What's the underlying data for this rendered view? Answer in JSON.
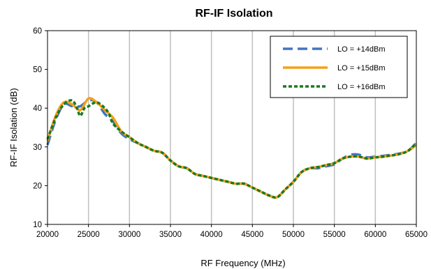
{
  "chart_data": {
    "type": "line",
    "title": "RF-IF Isolation",
    "xlabel": "RF Frequency (MHz)",
    "ylabel": "RF-IF Isolation (dB)",
    "xlim": [
      20000,
      65000
    ],
    "ylim": [
      10,
      60
    ],
    "x_ticks": [
      20000,
      25000,
      30000,
      35000,
      40000,
      45000,
      50000,
      55000,
      60000,
      65000
    ],
    "y_ticks": [
      10,
      20,
      30,
      40,
      50,
      60
    ],
    "grid": "vertical",
    "legend_position": "top-right",
    "series": [
      {
        "name": "LO = +14dBm",
        "color": "#4472C4",
        "dash": "dashed",
        "points": [
          [
            20000,
            30.5
          ],
          [
            21000,
            37
          ],
          [
            22000,
            41
          ],
          [
            23000,
            40.5
          ],
          [
            24000,
            40.5
          ],
          [
            25000,
            42
          ],
          [
            26000,
            41.5
          ],
          [
            27000,
            38.5
          ],
          [
            28000,
            36.5
          ],
          [
            29000,
            33.5
          ],
          [
            30000,
            32
          ],
          [
            31000,
            31
          ],
          [
            32000,
            30
          ],
          [
            33000,
            29
          ],
          [
            34000,
            28.5
          ],
          [
            35000,
            26.5
          ],
          [
            36000,
            25
          ],
          [
            37000,
            24.5
          ],
          [
            38000,
            23
          ],
          [
            39000,
            22.5
          ],
          [
            40000,
            22
          ],
          [
            41000,
            21.5
          ],
          [
            42000,
            21
          ],
          [
            43000,
            20.5
          ],
          [
            44000,
            20.5
          ],
          [
            45000,
            19.5
          ],
          [
            46000,
            18.5
          ],
          [
            47000,
            17.5
          ],
          [
            48000,
            17
          ],
          [
            49000,
            19
          ],
          [
            50000,
            21
          ],
          [
            51000,
            23.5
          ],
          [
            52000,
            24.5
          ],
          [
            53000,
            24.5
          ],
          [
            54000,
            25
          ],
          [
            55000,
            25.5
          ],
          [
            56000,
            27
          ],
          [
            57000,
            28
          ],
          [
            58000,
            28
          ],
          [
            59000,
            27.3
          ],
          [
            60000,
            27.5
          ],
          [
            61000,
            27.7
          ],
          [
            62000,
            28
          ],
          [
            63000,
            28.3
          ],
          [
            64000,
            29
          ],
          [
            65000,
            31
          ]
        ]
      },
      {
        "name": "LO = +15dBm",
        "color": "#F5A01A",
        "dash": "solid",
        "points": [
          [
            20000,
            31.5
          ],
          [
            21000,
            38
          ],
          [
            22000,
            41.5
          ],
          [
            23000,
            41
          ],
          [
            24000,
            39.5
          ],
          [
            25000,
            42.5
          ],
          [
            26000,
            41.5
          ],
          [
            27000,
            39.5
          ],
          [
            28000,
            37.5
          ],
          [
            29000,
            34
          ],
          [
            30000,
            32.5
          ],
          [
            31000,
            31
          ],
          [
            32000,
            30
          ],
          [
            33000,
            29
          ],
          [
            34000,
            28.5
          ],
          [
            35000,
            26.5
          ],
          [
            36000,
            25
          ],
          [
            37000,
            24.5
          ],
          [
            38000,
            23
          ],
          [
            39000,
            22.5
          ],
          [
            40000,
            22
          ],
          [
            41000,
            21.5
          ],
          [
            42000,
            21
          ],
          [
            43000,
            20.5
          ],
          [
            44000,
            20.5
          ],
          [
            45000,
            19.5
          ],
          [
            46000,
            18.5
          ],
          [
            47000,
            17.5
          ],
          [
            48000,
            17
          ],
          [
            49000,
            19
          ],
          [
            50000,
            21
          ],
          [
            51000,
            23.5
          ],
          [
            52000,
            24.5
          ],
          [
            53000,
            24.8
          ],
          [
            54000,
            25.3
          ],
          [
            55000,
            25.8
          ],
          [
            56000,
            27
          ],
          [
            57000,
            27.5
          ],
          [
            58000,
            27.5
          ],
          [
            59000,
            27
          ],
          [
            60000,
            27.3
          ],
          [
            61000,
            27.5
          ],
          [
            62000,
            27.8
          ],
          [
            63000,
            28.2
          ],
          [
            64000,
            29
          ],
          [
            65000,
            30.5
          ]
        ]
      },
      {
        "name": "LO = +16dBm",
        "color": "#1A7A1A",
        "dash": "dotted",
        "points": [
          [
            20000,
            32
          ],
          [
            21000,
            37.5
          ],
          [
            22000,
            41
          ],
          [
            23000,
            42
          ],
          [
            23600,
            40
          ],
          [
            24000,
            38
          ],
          [
            24500,
            40
          ],
          [
            25000,
            40.5
          ],
          [
            26000,
            41.5
          ],
          [
            27000,
            40
          ],
          [
            27500,
            38.5
          ],
          [
            28000,
            36
          ],
          [
            29000,
            34
          ],
          [
            30000,
            32.5
          ],
          [
            31000,
            31
          ],
          [
            32000,
            30
          ],
          [
            33000,
            29
          ],
          [
            34000,
            28.5
          ],
          [
            35000,
            26.5
          ],
          [
            36000,
            25
          ],
          [
            37000,
            24.5
          ],
          [
            38000,
            23
          ],
          [
            39000,
            22.5
          ],
          [
            40000,
            22
          ],
          [
            41000,
            21.5
          ],
          [
            42000,
            21
          ],
          [
            43000,
            20.5
          ],
          [
            44000,
            20.5
          ],
          [
            45000,
            19.5
          ],
          [
            46000,
            18.5
          ],
          [
            47000,
            17.5
          ],
          [
            48000,
            17
          ],
          [
            49000,
            19
          ],
          [
            50000,
            21
          ],
          [
            51000,
            23.5
          ],
          [
            52000,
            24.5
          ],
          [
            53000,
            24.8
          ],
          [
            54000,
            25.3
          ],
          [
            55000,
            25.8
          ],
          [
            56000,
            27
          ],
          [
            57000,
            27.5
          ],
          [
            58000,
            27.5
          ],
          [
            59000,
            27
          ],
          [
            60000,
            27.3
          ],
          [
            61000,
            27.5
          ],
          [
            62000,
            27.8
          ],
          [
            63000,
            28.2
          ],
          [
            64000,
            29
          ],
          [
            65000,
            31
          ]
        ]
      }
    ]
  }
}
